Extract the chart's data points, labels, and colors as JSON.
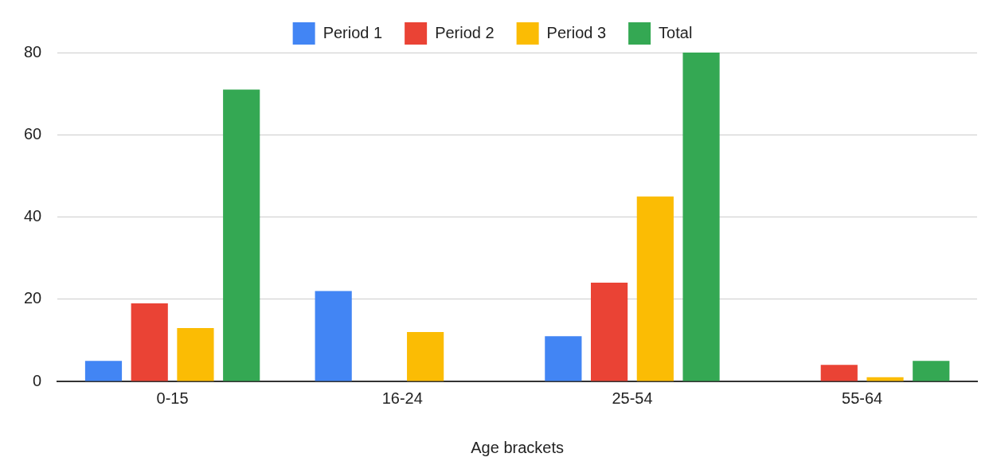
{
  "chart_data": {
    "type": "bar",
    "xlabel": "Age brackets",
    "categories": [
      "0-15",
      "16-24",
      "25-54",
      "55-64"
    ],
    "series": [
      {
        "name": "Period 1",
        "color": "#4285f4",
        "values": [
          5,
          22,
          11,
          0
        ]
      },
      {
        "name": "Period 2",
        "color": "#ea4335",
        "values": [
          19,
          0,
          24,
          4
        ]
      },
      {
        "name": "Period 3",
        "color": "#fbbc04",
        "values": [
          13,
          12,
          45,
          1
        ]
      },
      {
        "name": "Total",
        "color": "#34a853",
        "values": [
          71,
          0,
          80,
          5
        ]
      }
    ],
    "ylim": [
      0,
      80
    ],
    "yticks": [
      0,
      20,
      40,
      60,
      80
    ],
    "grid": "y",
    "legend": "top"
  }
}
